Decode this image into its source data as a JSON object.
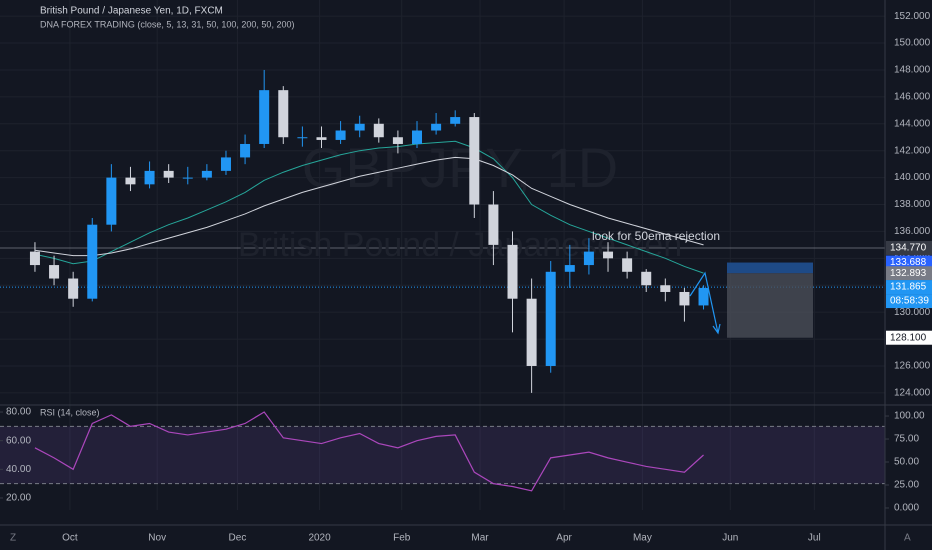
{
  "chart_data": {
    "type": "candlestick",
    "title": "British Pound / Japanese Yen, 1D, FXCM",
    "indicator_title": "DNA FOREX TRADING  (close, 5, 13, 31, 50, 100, 200, 50, 200)",
    "watermark_symbol": "GBPJPY, 1D",
    "watermark_name": "British Pound / Japanese Yen",
    "annotation": "look for 50ema rejection",
    "countdown": "08:58:39",
    "xlim": [
      -1.83,
      44.5
    ],
    "xticks": [
      {
        "value": 1.83,
        "label": "Oct"
      },
      {
        "value": 6.4,
        "label": "Nov"
      },
      {
        "value": 10.6,
        "label": "Dec"
      },
      {
        "value": 14.9,
        "label": "2020"
      },
      {
        "value": 19.2,
        "label": "Feb"
      },
      {
        "value": 23.3,
        "label": "Mar"
      },
      {
        "value": 27.7,
        "label": "Apr"
      },
      {
        "value": 31.8,
        "label": "May"
      },
      {
        "value": 36.4,
        "label": "Jun"
      },
      {
        "value": 40.8,
        "label": "Jul"
      }
    ],
    "ylim": [
      123.1,
      153.2
    ],
    "yticks": [
      {
        "value": 124,
        "label": "124.000"
      },
      {
        "value": 126,
        "label": "126.000"
      },
      {
        "value": 128,
        "label": "128.000"
      },
      {
        "value": 130,
        "label": "130.000"
      },
      {
        "value": 132,
        "label": "132.000"
      },
      {
        "value": 134,
        "label": "134.000"
      },
      {
        "value": 136,
        "label": "136.000"
      },
      {
        "value": 138,
        "label": "138.000"
      },
      {
        "value": 140,
        "label": "140.000"
      },
      {
        "value": 142,
        "label": "142.000"
      },
      {
        "value": 144,
        "label": "144.000"
      },
      {
        "value": 146,
        "label": "146.000"
      },
      {
        "value": 148,
        "label": "148.000"
      },
      {
        "value": 150,
        "label": "150.000"
      },
      {
        "value": 152,
        "label": "152.000"
      }
    ],
    "up_color": "#2196f3",
    "down_color": "#d1d4dc",
    "open": [
      134.5,
      133.5,
      132.5,
      131.0,
      136.5,
      140.0,
      139.5,
      140.5,
      140.0,
      140.0,
      140.5,
      141.5,
      142.5,
      146.5,
      143.0,
      143.0,
      142.8,
      143.5,
      144.0,
      143.0,
      142.5,
      143.5,
      144.0,
      144.5,
      138.0,
      135.0,
      131.0,
      126.0,
      133.0,
      133.5,
      134.5,
      134.0,
      133.0,
      132.0,
      131.5,
      130.5
    ],
    "high": [
      135.2,
      134.2,
      133.0,
      137.0,
      141.0,
      140.8,
      141.2,
      141.0,
      140.8,
      141.0,
      142.0,
      143.2,
      148.0,
      146.8,
      143.8,
      143.8,
      144.2,
      144.6,
      144.4,
      143.5,
      144.2,
      144.8,
      145.0,
      144.8,
      139.0,
      136.0,
      132.5,
      133.8,
      135.0,
      135.5,
      135.2,
      134.5,
      133.2,
      132.5,
      131.8,
      132.0
    ],
    "low": [
      133.0,
      132.0,
      130.4,
      130.8,
      136.0,
      139.0,
      139.2,
      139.6,
      139.5,
      139.8,
      140.2,
      141.0,
      142.2,
      142.5,
      142.3,
      142.2,
      142.5,
      143.0,
      142.6,
      141.8,
      142.2,
      143.2,
      143.8,
      137.0,
      133.5,
      128.5,
      124.0,
      125.5,
      131.8,
      132.8,
      133.0,
      132.5,
      131.5,
      130.8,
      129.3,
      130.2
    ],
    "close": [
      133.5,
      132.5,
      131.0,
      136.5,
      140.0,
      139.5,
      140.5,
      140.0,
      140.0,
      140.5,
      141.5,
      142.5,
      146.5,
      143.0,
      143.0,
      142.8,
      143.5,
      144.0,
      143.0,
      142.5,
      143.5,
      144.0,
      144.5,
      138.0,
      135.0,
      131.0,
      126.0,
      133.0,
      133.5,
      134.5,
      134.0,
      133.0,
      132.0,
      131.5,
      130.5,
      131.8
    ],
    "series": [
      {
        "color": "#26a69a",
        "values": [
          134.3,
          134.0,
          133.6,
          133.8,
          134.5,
          135.2,
          135.9,
          136.5,
          137.0,
          137.6,
          138.2,
          138.9,
          139.8,
          140.4,
          140.9,
          141.3,
          141.7,
          142.0,
          142.2,
          142.3,
          142.5,
          142.6,
          142.7,
          142.2,
          141.4,
          140.0,
          138.0,
          137.2,
          136.5,
          136.0,
          135.5,
          135.0,
          134.5,
          134.0,
          133.4,
          132.9
        ]
      },
      {
        "color": "#d1d4dc",
        "values": [
          134.6,
          134.4,
          134.2,
          134.2,
          134.4,
          134.7,
          135.1,
          135.5,
          135.9,
          136.3,
          136.8,
          137.3,
          137.9,
          138.4,
          138.9,
          139.3,
          139.7,
          140.1,
          140.4,
          140.7,
          141.0,
          141.3,
          141.5,
          141.4,
          140.9,
          140.2,
          139.2,
          138.6,
          138.0,
          137.5,
          137.0,
          136.6,
          136.2,
          135.8,
          135.4,
          135.0
        ]
      }
    ],
    "price_labels": [
      {
        "value": 134.77,
        "label": "134.770",
        "color": "#363a45"
      },
      {
        "value": 133.688,
        "label": "133.688",
        "color": "#2962ff"
      },
      {
        "value": 132.893,
        "label": "132.893",
        "color": "#787b86"
      },
      {
        "value": 131.865,
        "label": "131.865",
        "color": "#2196f3"
      },
      {
        "value": 128.1,
        "label": "128.100",
        "color": "#ffffff"
      }
    ],
    "rsi": {
      "title": "RSI (14, close)",
      "color": "#ab47bc",
      "values": [
        55,
        48,
        40,
        72,
        78,
        70,
        72,
        66,
        64,
        66,
        68,
        72,
        80,
        62,
        60,
        58,
        62,
        65,
        58,
        55,
        60,
        63,
        64,
        38,
        30,
        28,
        25,
        48,
        50,
        52,
        48,
        45,
        42,
        40,
        38,
        50
      ],
      "ylim": [
        11.6,
        84.9
      ],
      "yticks": [
        {
          "value": 80,
          "label": "80.00"
        },
        {
          "value": 60,
          "label": "60.00"
        },
        {
          "value": 40,
          "label": "40.00"
        },
        {
          "value": 20,
          "label": "20.00"
        }
      ],
      "bands": [
        70,
        30
      ],
      "y2lim": [
        -2.2,
        112
      ],
      "y2ticks": [
        {
          "value": 100,
          "label": "100.00"
        },
        {
          "value": 75,
          "label": "75.00"
        },
        {
          "value": 50,
          "label": "50.00"
        },
        {
          "value": 25,
          "label": "25.00"
        },
        {
          "value": 0,
          "label": "0.000"
        }
      ]
    }
  }
}
